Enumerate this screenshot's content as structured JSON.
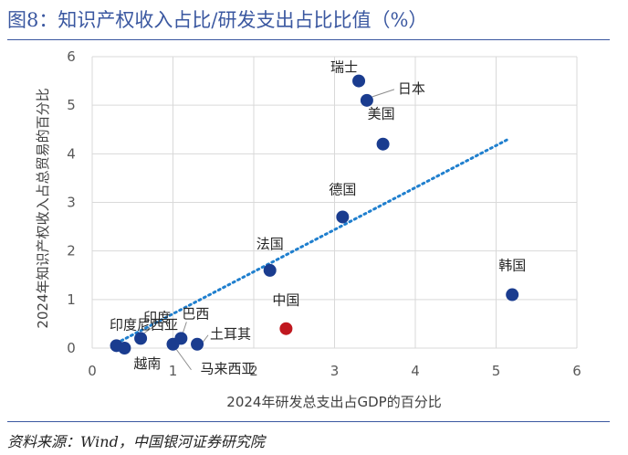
{
  "figure": {
    "label": "图8：",
    "title": "知识产权收入占比/研发支出占比比值（%）",
    "source": "资料来源：Wind，中国银河证券研究院"
  },
  "chart_data": {
    "type": "scatter",
    "title": "知识产权收入占比/研发支出占比比值（%）",
    "xlabel": "2024年研发总支出占GDP的百分比",
    "ylabel": "2024年知识产权收入占总贸易的百分比",
    "xlim": [
      0,
      6
    ],
    "ylim": [
      0,
      6
    ],
    "xticks": [
      0,
      1,
      2,
      3,
      4,
      5,
      6
    ],
    "yticks": [
      0,
      1,
      2,
      3,
      4,
      5,
      6
    ],
    "grid": true,
    "colors": {
      "default": "#1a3c8f",
      "highlight": "#c0181f",
      "trend": "#1f7fce",
      "grid": "#d9d9d9",
      "axis_text": "#595959"
    },
    "points": [
      {
        "name": "瑞士",
        "x": 3.3,
        "y": 5.5,
        "highlight": false
      },
      {
        "name": "日本",
        "x": 3.4,
        "y": 5.1,
        "highlight": false
      },
      {
        "name": "美国",
        "x": 3.6,
        "y": 4.2,
        "highlight": false
      },
      {
        "name": "德国",
        "x": 3.1,
        "y": 2.7,
        "highlight": false
      },
      {
        "name": "法国",
        "x": 2.2,
        "y": 1.6,
        "highlight": false
      },
      {
        "name": "韩国",
        "x": 5.2,
        "y": 1.1,
        "highlight": false
      },
      {
        "name": "中国",
        "x": 2.4,
        "y": 0.4,
        "highlight": true
      },
      {
        "name": "印度",
        "x": 0.6,
        "y": 0.2,
        "highlight": false
      },
      {
        "name": "印度尼西亚",
        "x": 0.3,
        "y": 0.05,
        "highlight": false
      },
      {
        "name": "越南",
        "x": 0.4,
        "y": 0.0,
        "highlight": false
      },
      {
        "name": "巴西",
        "x": 1.1,
        "y": 0.2,
        "highlight": false
      },
      {
        "name": "马来西亚",
        "x": 1.0,
        "y": 0.08,
        "highlight": false
      },
      {
        "name": "土耳其",
        "x": 1.3,
        "y": 0.08,
        "highlight": false
      }
    ],
    "trendline": {
      "style": "dotted",
      "x_start": 0.3,
      "y_start": 0.1,
      "x_end": 5.15,
      "y_end": 4.3
    }
  }
}
